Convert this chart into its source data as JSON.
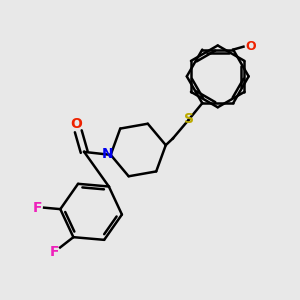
{
  "background_color": "#e8e8e8",
  "atom_colors": {
    "O": "#ee2200",
    "N": "#0000ee",
    "S": "#bbaa00",
    "F": "#ee22bb",
    "C": "#000000"
  },
  "bond_color": "#000000",
  "bond_width": 1.8,
  "figsize": [
    3.0,
    3.0
  ],
  "dpi": 100,
  "xlim": [
    0,
    10
  ],
  "ylim": [
    0,
    10
  ]
}
